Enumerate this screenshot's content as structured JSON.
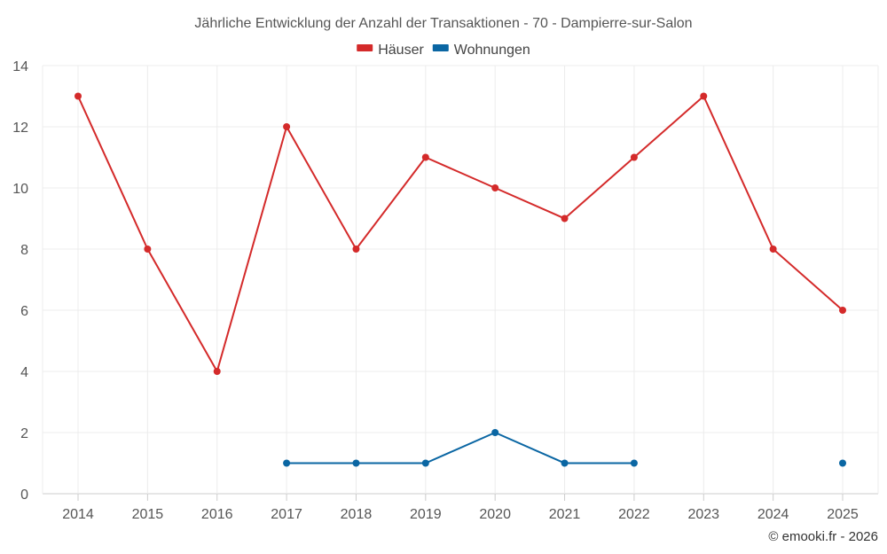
{
  "chart_data": {
    "type": "line",
    "title": "Jährliche Entwicklung der Anzahl der Transaktionen - 70 - Dampierre-sur-Salon",
    "categories": [
      "2014",
      "2015",
      "2016",
      "2017",
      "2018",
      "2019",
      "2020",
      "2021",
      "2022",
      "2023",
      "2024",
      "2025"
    ],
    "yticks": [
      0,
      2,
      4,
      6,
      8,
      10,
      12,
      14
    ],
    "ylim": [
      0,
      14
    ],
    "xlabel": "",
    "ylabel": "",
    "grid": true,
    "legend_position": "top-center",
    "series": [
      {
        "name": "Häuser",
        "color": "#d42a2a",
        "values": [
          13,
          8,
          4,
          12,
          8,
          11,
          10,
          9,
          11,
          13,
          8,
          6
        ]
      },
      {
        "name": "Wohnungen",
        "color": "#0a66a3",
        "values": [
          null,
          null,
          null,
          1,
          1,
          1,
          2,
          1,
          1,
          null,
          null,
          1
        ]
      }
    ]
  },
  "credit": "© emooki.fr - 2026"
}
